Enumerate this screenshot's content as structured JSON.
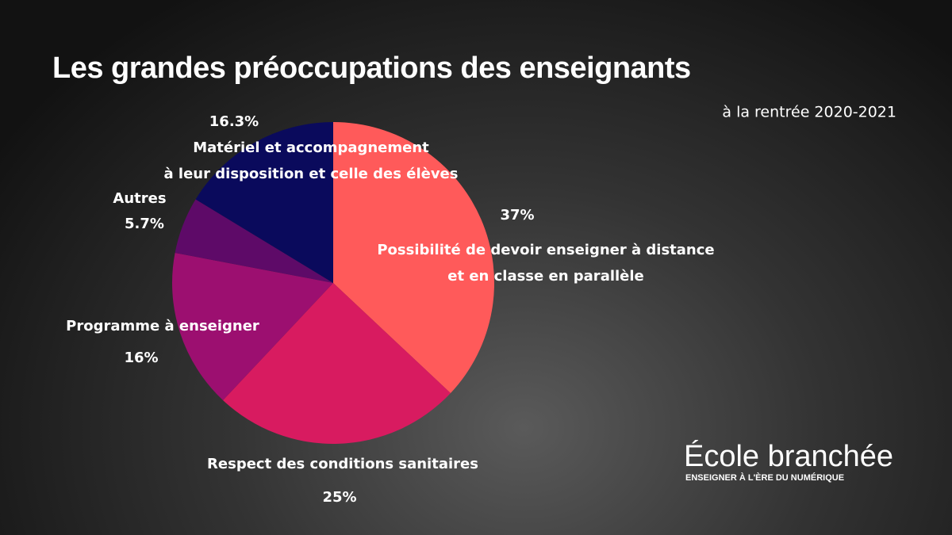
{
  "chart_data": {
    "type": "pie",
    "title": "Les grandes préoccupations des enseignants",
    "subtitle": "à la rentrée 2020-2021",
    "categories": [
      "Possibilité de devoir enseigner à distance\net en classe en parallèle",
      "Respect des conditions sanitaires",
      "Programme à enseigner",
      "Autres",
      "Matériel et accompagnement\nà leur disposition et celle des élèves"
    ],
    "values": [
      37,
      25,
      16,
      5.7,
      16.3
    ],
    "value_labels": [
      "37%",
      "25%",
      "16%",
      "5.7%",
      "16.3%"
    ],
    "colors": [
      "#ff5a5a",
      "#d81b60",
      "#9c0f70",
      "#5e0a68",
      "#0a0a5c"
    ]
  },
  "logo": {
    "name": "École branchée",
    "tagline": "ENSEIGNER À L'ÈRE DU NUMÉRIQUE"
  }
}
